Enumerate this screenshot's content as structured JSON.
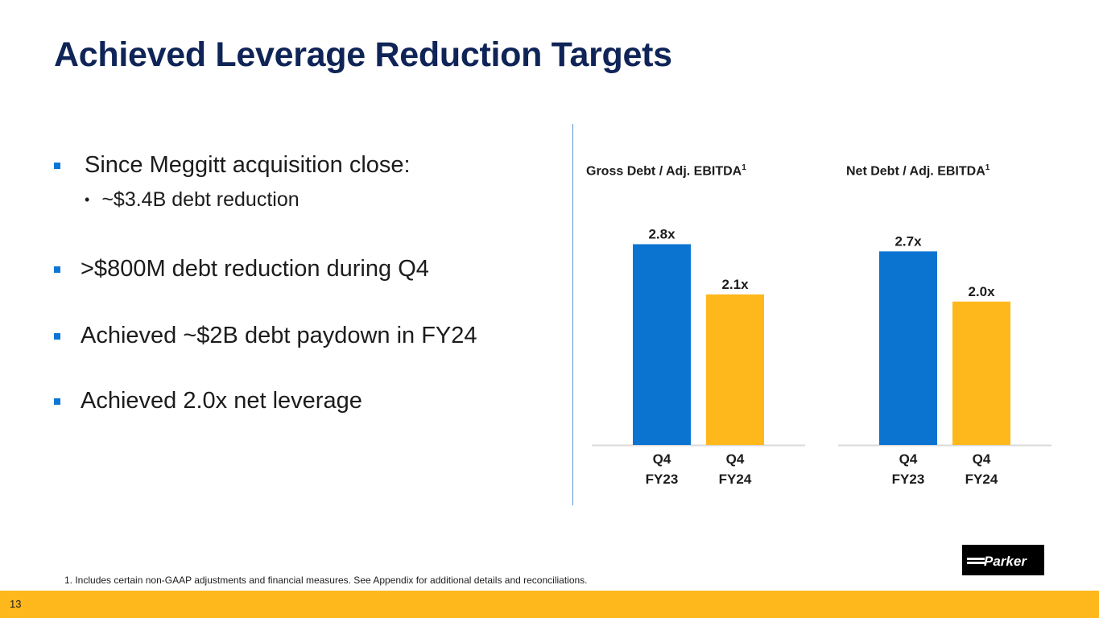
{
  "slide": {
    "title": "Achieved Leverage Reduction Targets",
    "page_number": "13",
    "footnote": "1. Includes certain non-GAAP adjustments and financial measures. See Appendix for additional details and reconciliations.",
    "logo_text": "Parker"
  },
  "bullets": [
    {
      "text": "Since Meggitt acquisition close:",
      "level": 1
    },
    {
      "text": "~$3.4B debt reduction",
      "level": 2
    },
    {
      "text": ">$800M debt reduction during Q4",
      "level": 1
    },
    {
      "text": "Achieved ~$2B debt paydown in FY24",
      "level": 1
    },
    {
      "text": "Achieved 2.0x net leverage",
      "level": 1
    }
  ],
  "colors": {
    "title": "#0f2457",
    "bullet_marker": "#0a77d6",
    "fy23_bar": "#0b74d1",
    "fy24_bar": "#ffb81c",
    "bottom_bar": "#ffb81c"
  },
  "chart_data": [
    {
      "type": "bar",
      "title": "Gross Debt / Adj. EBITDA",
      "title_sup": "1",
      "categories": [
        "Q4 FY23",
        "Q4 FY24"
      ],
      "category_lines": [
        [
          "Q4",
          "FY23"
        ],
        [
          "Q4",
          "FY24"
        ]
      ],
      "values": [
        2.8,
        2.1
      ],
      "value_labels": [
        "2.8x",
        "2.1x"
      ],
      "ylim": [
        0,
        3.4
      ],
      "xlabel": "",
      "ylabel": ""
    },
    {
      "type": "bar",
      "title": "Net Debt / Adj. EBITDA",
      "title_sup": "1",
      "categories": [
        "Q4 FY23",
        "Q4 FY24"
      ],
      "category_lines": [
        [
          "Q4",
          "FY23"
        ],
        [
          "Q4",
          "FY24"
        ]
      ],
      "values": [
        2.7,
        2.0
      ],
      "value_labels": [
        "2.7x",
        "2.0x"
      ],
      "ylim": [
        0,
        3.4
      ],
      "xlabel": "",
      "ylabel": ""
    }
  ]
}
